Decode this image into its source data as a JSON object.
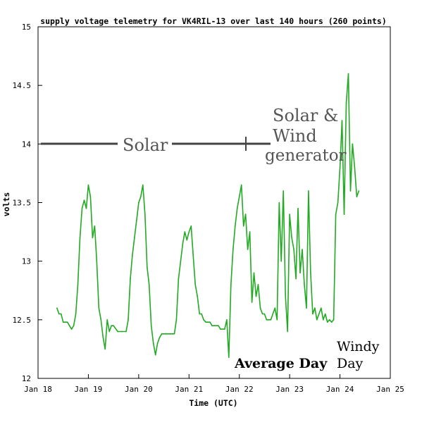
{
  "chart_data": {
    "type": "line",
    "title": "supply voltage telemetry for VK4RIL-13 over last 140 hours (260 points)",
    "xlabel": "Time (UTC)",
    "ylabel": "volts",
    "xlim": [
      "Jan 18",
      "Jan 25"
    ],
    "ylim": [
      12,
      15
    ],
    "x_ticks": [
      "Jan 18",
      "Jan 19",
      "Jan 20",
      "Jan 21",
      "Jan 22",
      "Jan 23",
      "Jan 24",
      "Jan 25"
    ],
    "y_ticks": [
      "12",
      "12.5",
      "13",
      "13.5",
      "14",
      "14.5",
      "15"
    ],
    "grid": false,
    "line_color": "#22aa22",
    "series": [
      {
        "name": "",
        "points": [
          [
            "Jan 18 09:00",
            12.6
          ],
          [
            "Jan 18 10:00",
            12.55
          ],
          [
            "Jan 18 11:00",
            12.55
          ],
          [
            "Jan 18 12:00",
            12.48
          ],
          [
            "Jan 18 13:00",
            12.48
          ],
          [
            "Jan 18 14:00",
            12.48
          ],
          [
            "Jan 18 15:00",
            12.45
          ],
          [
            "Jan 18 16:00",
            12.42
          ],
          [
            "Jan 18 17:00",
            12.45
          ],
          [
            "Jan 18 18:00",
            12.55
          ],
          [
            "Jan 18 19:00",
            12.8
          ],
          [
            "Jan 18 20:00",
            13.2
          ],
          [
            "Jan 18 21:00",
            13.45
          ],
          [
            "Jan 18 22:00",
            13.52
          ],
          [
            "Jan 18 23:00",
            13.45
          ],
          [
            "Jan 19 00:00",
            13.65
          ],
          [
            "Jan 19 01:00",
            13.55
          ],
          [
            "Jan 19 02:00",
            13.2
          ],
          [
            "Jan 19 03:00",
            13.3
          ],
          [
            "Jan 19 04:00",
            13.0
          ],
          [
            "Jan 19 05:00",
            12.6
          ],
          [
            "Jan 19 06:00",
            12.5
          ],
          [
            "Jan 19 07:00",
            12.35
          ],
          [
            "Jan 19 08:00",
            12.25
          ],
          [
            "Jan 19 09:00",
            12.5
          ],
          [
            "Jan 19 10:00",
            12.4
          ],
          [
            "Jan 19 11:00",
            12.45
          ],
          [
            "Jan 19 12:00",
            12.45
          ],
          [
            "Jan 19 14:00",
            12.4
          ],
          [
            "Jan 19 16:00",
            12.4
          ],
          [
            "Jan 19 18:00",
            12.4
          ],
          [
            "Jan 19 19:00",
            12.5
          ],
          [
            "Jan 19 20:00",
            12.85
          ],
          [
            "Jan 19 21:00",
            13.05
          ],
          [
            "Jan 19 22:00",
            13.2
          ],
          [
            "Jan 19 23:00",
            13.35
          ],
          [
            "Jan 20 00:00",
            13.5
          ],
          [
            "Jan 20 01:00",
            13.55
          ],
          [
            "Jan 20 02:00",
            13.65
          ],
          [
            "Jan 20 03:00",
            13.4
          ],
          [
            "Jan 20 04:00",
            12.95
          ],
          [
            "Jan 20 05:00",
            12.8
          ],
          [
            "Jan 20 06:00",
            12.45
          ],
          [
            "Jan 20 07:00",
            12.3
          ],
          [
            "Jan 20 08:00",
            12.2
          ],
          [
            "Jan 20 09:00",
            12.3
          ],
          [
            "Jan 20 10:00",
            12.35
          ],
          [
            "Jan 20 11:00",
            12.38
          ],
          [
            "Jan 20 13:00",
            12.38
          ],
          [
            "Jan 20 15:00",
            12.38
          ],
          [
            "Jan 20 17:00",
            12.38
          ],
          [
            "Jan 20 18:00",
            12.5
          ],
          [
            "Jan 20 19:00",
            12.85
          ],
          [
            "Jan 20 20:00",
            13.0
          ],
          [
            "Jan 20 21:00",
            13.15
          ],
          [
            "Jan 20 22:00",
            13.25
          ],
          [
            "Jan 20 23:00",
            13.18
          ],
          [
            "Jan 21 00:00",
            13.25
          ],
          [
            "Jan 21 01:00",
            13.3
          ],
          [
            "Jan 21 02:00",
            13.05
          ],
          [
            "Jan 21 03:00",
            12.8
          ],
          [
            "Jan 21 04:00",
            12.7
          ],
          [
            "Jan 21 05:00",
            12.55
          ],
          [
            "Jan 21 06:00",
            12.55
          ],
          [
            "Jan 21 07:00",
            12.5
          ],
          [
            "Jan 21 08:00",
            12.48
          ],
          [
            "Jan 21 10:00",
            12.48
          ],
          [
            "Jan 21 11:00",
            12.45
          ],
          [
            "Jan 21 12:00",
            12.45
          ],
          [
            "Jan 21 14:00",
            12.45
          ],
          [
            "Jan 21 15:00",
            12.42
          ],
          [
            "Jan 21 17:00",
            12.42
          ],
          [
            "Jan 21 18:00",
            12.5
          ],
          [
            "Jan 21 19:00",
            12.18
          ],
          [
            "Jan 21 20:00",
            12.8
          ],
          [
            "Jan 21 21:00",
            13.1
          ],
          [
            "Jan 21 22:00",
            13.3
          ],
          [
            "Jan 21 23:00",
            13.45
          ],
          [
            "Jan 22 00:00",
            13.55
          ],
          [
            "Jan 22 01:00",
            13.65
          ],
          [
            "Jan 22 02:00",
            13.3
          ],
          [
            "Jan 22 03:00",
            13.4
          ],
          [
            "Jan 22 04:00",
            13.1
          ],
          [
            "Jan 22 05:00",
            13.25
          ],
          [
            "Jan 22 06:00",
            12.65
          ],
          [
            "Jan 22 07:00",
            12.9
          ],
          [
            "Jan 22 08:00",
            12.7
          ],
          [
            "Jan 22 09:00",
            12.8
          ],
          [
            "Jan 22 10:00",
            12.6
          ],
          [
            "Jan 22 11:00",
            12.55
          ],
          [
            "Jan 22 12:00",
            12.55
          ],
          [
            "Jan 22 13:00",
            12.5
          ],
          [
            "Jan 22 14:00",
            12.5
          ],
          [
            "Jan 22 15:00",
            12.5
          ],
          [
            "Jan 22 16:00",
            12.55
          ],
          [
            "Jan 22 17:00",
            12.6
          ],
          [
            "Jan 22 18:00",
            12.5
          ],
          [
            "Jan 22 19:00",
            13.5
          ],
          [
            "Jan 22 20:00",
            13.0
          ],
          [
            "Jan 22 21:00",
            13.6
          ],
          [
            "Jan 22 22:00",
            12.7
          ],
          [
            "Jan 22 23:00",
            12.4
          ],
          [
            "Jan 23 00:00",
            13.4
          ],
          [
            "Jan 23 01:00",
            13.2
          ],
          [
            "Jan 23 02:00",
            13.1
          ],
          [
            "Jan 23 03:00",
            12.85
          ],
          [
            "Jan 23 04:00",
            13.45
          ],
          [
            "Jan 23 05:00",
            12.9
          ],
          [
            "Jan 23 06:00",
            13.1
          ],
          [
            "Jan 23 07:00",
            12.8
          ],
          [
            "Jan 23 08:00",
            12.6
          ],
          [
            "Jan 23 09:00",
            13.6
          ],
          [
            "Jan 23 10:00",
            12.9
          ],
          [
            "Jan 23 11:00",
            12.55
          ],
          [
            "Jan 23 12:00",
            12.6
          ],
          [
            "Jan 23 13:00",
            12.5
          ],
          [
            "Jan 23 14:00",
            12.55
          ],
          [
            "Jan 23 15:00",
            12.6
          ],
          [
            "Jan 23 16:00",
            12.5
          ],
          [
            "Jan 23 17:00",
            12.55
          ],
          [
            "Jan 23 18:00",
            12.48
          ],
          [
            "Jan 23 19:00",
            12.5
          ],
          [
            "Jan 23 20:00",
            12.48
          ],
          [
            "Jan 23 21:00",
            12.5
          ],
          [
            "Jan 23 22:00",
            13.4
          ],
          [
            "Jan 23 23:00",
            13.5
          ],
          [
            "Jan 24 00:00",
            13.8
          ],
          [
            "Jan 24 01:00",
            14.2
          ],
          [
            "Jan 24 02:00",
            13.4
          ],
          [
            "Jan 24 03:00",
            14.35
          ],
          [
            "Jan 24 04:00",
            14.6
          ],
          [
            "Jan 24 05:00",
            13.6
          ],
          [
            "Jan 24 06:00",
            14.0
          ],
          [
            "Jan 24 07:00",
            13.8
          ],
          [
            "Jan 24 08:00",
            13.55
          ],
          [
            "Jan 24 09:00",
            13.6
          ]
        ]
      }
    ],
    "annotations": [
      {
        "text": "Solar"
      },
      {
        "text": "Solar &"
      },
      {
        "text": "Wind"
      },
      {
        "text": "generator"
      },
      {
        "text": "Average Day"
      },
      {
        "text": "Windy"
      },
      {
        "text": "Day"
      }
    ]
  }
}
